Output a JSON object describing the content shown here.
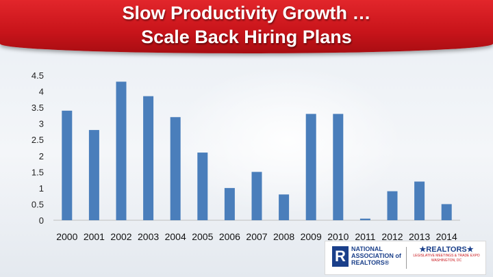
{
  "slide": {
    "title_line1": "Slow Productivity Growth …",
    "title_line2": "Scale Back Hiring Plans"
  },
  "chart_data": {
    "type": "bar",
    "title": "Slow Productivity Growth … Scale Back Hiring Plans",
    "categories": [
      "2000",
      "2001",
      "2002",
      "2003",
      "2004",
      "2005",
      "2006",
      "2007",
      "2008",
      "2009",
      "2010",
      "2011",
      "2012",
      "2013",
      "2014"
    ],
    "values": [
      3.4,
      2.8,
      4.3,
      3.85,
      3.2,
      2.1,
      1.0,
      1.5,
      0.8,
      3.3,
      3.3,
      0.05,
      0.9,
      1.2,
      0.5
    ],
    "ylim": [
      0,
      4.5
    ],
    "yticks": [
      "0",
      "0.5",
      "1",
      "1.5",
      "2",
      "2.5",
      "3",
      "3.5",
      "4",
      "4.5"
    ],
    "xlabel": "",
    "ylabel": "",
    "grid": false,
    "bar_color": "#4a7ebb"
  },
  "logo": {
    "nar_line1": "NATIONAL",
    "nar_line2": "ASSOCIATION of",
    "nar_line3": "REALTORS®",
    "r_mark": "R",
    "brand": "★REALTORS★",
    "sub1": "LEGISLATIVE MEETINGS & TRADE EXPO",
    "sub2": "WASHINGTON, DC"
  }
}
